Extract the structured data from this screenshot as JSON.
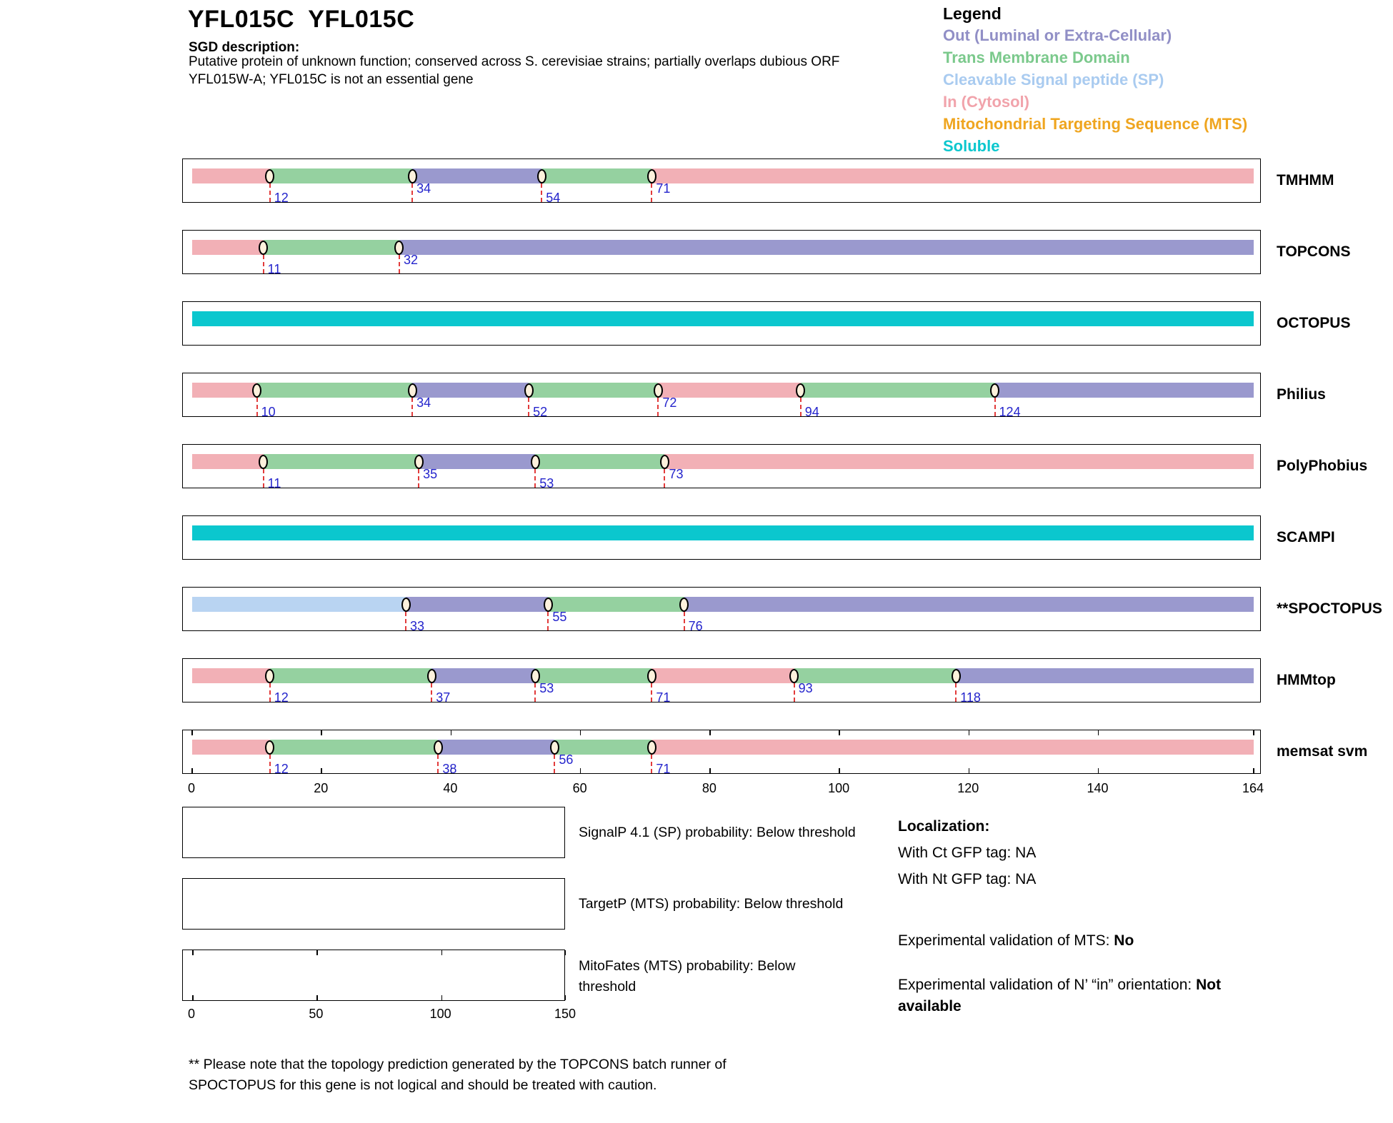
{
  "header": {
    "title": "YFL015C  YFL015C",
    "sgd_heading": "SGD description:",
    "sgd_line1": "Putative protein of unknown function; conserved across S. cerevisiae strains; partially overlaps dubious ORF",
    "sgd_line2": "YFL015W-A; YFL015C is not an essential gene"
  },
  "legend": {
    "heading": "Legend",
    "items": [
      {
        "label": "Out (Luminal or Extra-Cellular)",
        "color": "#918FC6",
        "key": "out"
      },
      {
        "label": "Trans Membrane Domain",
        "color": "#7BC98C",
        "key": "tm"
      },
      {
        "label": "Cleavable Signal peptide (SP)",
        "color": "#A9CBF0",
        "key": "sp"
      },
      {
        "label": "In (Cytosol)",
        "color": "#F1A3AB",
        "key": "in"
      },
      {
        "label": "Mitochondrial Targeting Sequence (MTS)",
        "color": "#EFA51F",
        "key": "mts"
      },
      {
        "label": "Soluble",
        "color": "#0BC7CE",
        "key": "sol"
      }
    ]
  },
  "chart_data": {
    "type": "topology-tracks",
    "x_max": 164,
    "x_ticks": [
      0,
      20,
      40,
      60,
      80,
      100,
      120,
      140
    ],
    "x_end_label": "164",
    "segment_colors": {
      "in": "#F2B0B6",
      "tm": "#95D1A0",
      "out": "#9A99CE",
      "sp": "#B9D4F2",
      "sol": "#0BC7CE"
    },
    "marker_fill": "#FDF1DC",
    "boundary_line_color": "#E23B3B",
    "number_color": "#2424CC",
    "tracks": [
      {
        "label": "TMHMM",
        "ruler": false,
        "segments": [
          {
            "from": 0,
            "to": 12,
            "type": "in"
          },
          {
            "from": 12,
            "to": 34,
            "type": "tm"
          },
          {
            "from": 34,
            "to": 54,
            "type": "out"
          },
          {
            "from": 54,
            "to": 71,
            "type": "tm"
          },
          {
            "from": 71,
            "to": 164,
            "type": "in"
          }
        ],
        "boundaries": [
          {
            "pos": 12,
            "raised": false
          },
          {
            "pos": 34,
            "raised": true
          },
          {
            "pos": 54,
            "raised": false
          },
          {
            "pos": 71,
            "raised": true
          }
        ]
      },
      {
        "label": "TOPCONS",
        "ruler": false,
        "segments": [
          {
            "from": 0,
            "to": 11,
            "type": "in"
          },
          {
            "from": 11,
            "to": 32,
            "type": "tm"
          },
          {
            "from": 32,
            "to": 164,
            "type": "out"
          }
        ],
        "boundaries": [
          {
            "pos": 11,
            "raised": false
          },
          {
            "pos": 32,
            "raised": true
          }
        ]
      },
      {
        "label": "OCTOPUS",
        "ruler": false,
        "segments": [
          {
            "from": 0,
            "to": 164,
            "type": "sol"
          }
        ],
        "boundaries": []
      },
      {
        "label": "Philius",
        "ruler": false,
        "segments": [
          {
            "from": 0,
            "to": 10,
            "type": "in"
          },
          {
            "from": 10,
            "to": 34,
            "type": "tm"
          },
          {
            "from": 34,
            "to": 52,
            "type": "out"
          },
          {
            "from": 52,
            "to": 72,
            "type": "tm"
          },
          {
            "from": 72,
            "to": 94,
            "type": "in"
          },
          {
            "from": 94,
            "to": 124,
            "type": "tm"
          },
          {
            "from": 124,
            "to": 164,
            "type": "out"
          }
        ],
        "boundaries": [
          {
            "pos": 10,
            "raised": false
          },
          {
            "pos": 34,
            "raised": true
          },
          {
            "pos": 52,
            "raised": false
          },
          {
            "pos": 72,
            "raised": true
          },
          {
            "pos": 94,
            "raised": false
          },
          {
            "pos": 124,
            "raised": false
          }
        ]
      },
      {
        "label": "PolyPhobius",
        "ruler": false,
        "segments": [
          {
            "from": 0,
            "to": 11,
            "type": "in"
          },
          {
            "from": 11,
            "to": 35,
            "type": "tm"
          },
          {
            "from": 35,
            "to": 53,
            "type": "out"
          },
          {
            "from": 53,
            "to": 73,
            "type": "tm"
          },
          {
            "from": 73,
            "to": 164,
            "type": "in"
          }
        ],
        "boundaries": [
          {
            "pos": 11,
            "raised": false
          },
          {
            "pos": 35,
            "raised": true
          },
          {
            "pos": 53,
            "raised": false
          },
          {
            "pos": 73,
            "raised": true
          }
        ]
      },
      {
        "label": "SCAMPI",
        "ruler": false,
        "segments": [
          {
            "from": 0,
            "to": 164,
            "type": "sol"
          }
        ],
        "boundaries": []
      },
      {
        "label": "**SPOCTOPUS",
        "ruler": false,
        "segments": [
          {
            "from": 0,
            "to": 33,
            "type": "sp"
          },
          {
            "from": 33,
            "to": 55,
            "type": "out"
          },
          {
            "from": 55,
            "to": 76,
            "type": "tm"
          },
          {
            "from": 76,
            "to": 164,
            "type": "out"
          }
        ],
        "boundaries": [
          {
            "pos": 33,
            "raised": false
          },
          {
            "pos": 55,
            "raised": true
          },
          {
            "pos": 76,
            "raised": false
          }
        ]
      },
      {
        "label": "HMMtop",
        "ruler": false,
        "segments": [
          {
            "from": 0,
            "to": 12,
            "type": "in"
          },
          {
            "from": 12,
            "to": 37,
            "type": "tm"
          },
          {
            "from": 37,
            "to": 53,
            "type": "out"
          },
          {
            "from": 53,
            "to": 71,
            "type": "tm"
          },
          {
            "from": 71,
            "to": 93,
            "type": "in"
          },
          {
            "from": 93,
            "to": 118,
            "type": "tm"
          },
          {
            "from": 118,
            "to": 164,
            "type": "out"
          }
        ],
        "boundaries": [
          {
            "pos": 12,
            "raised": false
          },
          {
            "pos": 37,
            "raised": false
          },
          {
            "pos": 53,
            "raised": true
          },
          {
            "pos": 71,
            "raised": false
          },
          {
            "pos": 93,
            "raised": true
          },
          {
            "pos": 118,
            "raised": false
          }
        ]
      },
      {
        "label": "memsat svm",
        "ruler": true,
        "segments": [
          {
            "from": 0,
            "to": 12,
            "type": "in"
          },
          {
            "from": 12,
            "to": 38,
            "type": "tm"
          },
          {
            "from": 38,
            "to": 56,
            "type": "out"
          },
          {
            "from": 56,
            "to": 71,
            "type": "tm"
          },
          {
            "from": 71,
            "to": 164,
            "type": "in"
          }
        ],
        "boundaries": [
          {
            "pos": 12,
            "raised": false
          },
          {
            "pos": 38,
            "raised": false
          },
          {
            "pos": 56,
            "raised": true
          },
          {
            "pos": 71,
            "raised": false
          }
        ]
      }
    ]
  },
  "probability_plots": [
    {
      "name": "signalp",
      "caption_lines": [
        "SignalP 4.1 (SP) probability: Below threshold"
      ],
      "has_ticks": false
    },
    {
      "name": "targetp",
      "caption_lines": [
        "TargetP (MTS) probability: Below threshold"
      ],
      "has_ticks": false
    },
    {
      "name": "mitofates",
      "caption_lines": [
        "MitoFates (MTS) probability: Below",
        "threshold"
      ],
      "has_ticks": true,
      "x_max": 150,
      "x_ticks": [
        0,
        50,
        100,
        150
      ]
    }
  ],
  "info": {
    "localization_heading": "Localization:",
    "ct_line": "With Ct GFP tag: NA",
    "nt_line": "With Nt GFP tag: NA",
    "mts_prefix": "Experimental validation of MTS: ",
    "mts_value": "No",
    "orientation_prefix": "Experimental validation of N’ “in” orientation: ",
    "orientation_value_line1": "Not",
    "orientation_value_line2": "available"
  },
  "footnote": {
    "line1": "** Please note that the topology prediction generated by the TOPCONS batch runner of",
    "line2": "SPOCTOPUS for this gene is not logical and should be treated with caution."
  }
}
